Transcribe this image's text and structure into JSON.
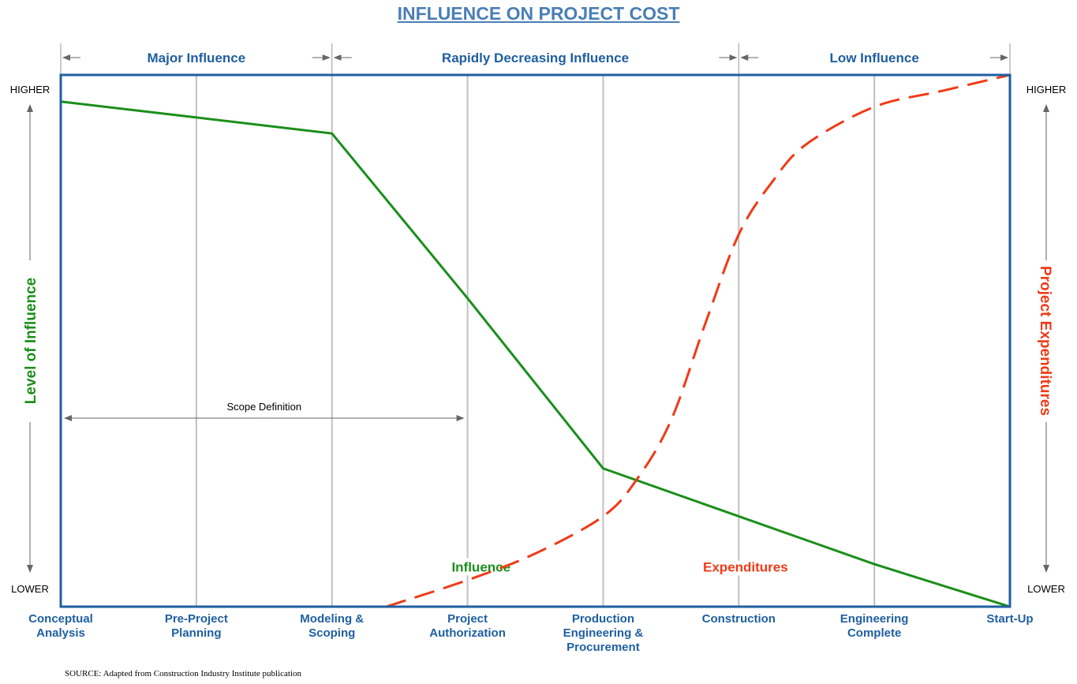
{
  "title": "INFLUENCE ON PROJECT COST",
  "source": "SOURCE: Adapted from Construction Industry Institute publication",
  "colors": {
    "blue": "#1f5fa0",
    "title_blue": "#4a7fb5",
    "green": "#1a8f1a",
    "red": "#f03a17",
    "grid": "#c0c0c0",
    "frame": "#1f5fa0"
  },
  "phases": [
    {
      "label": "Major Influence",
      "from": 0,
      "to": 2
    },
    {
      "label": "Rapidly Decreasing Influence",
      "from": 2,
      "to": 5
    },
    {
      "label": "Low Influence",
      "from": 5,
      "to": 7
    }
  ],
  "left_axis": {
    "label": "Level of Influence",
    "top": "HIGHER",
    "bottom": "LOWER"
  },
  "right_axis": {
    "label": "Project Expenditures",
    "top": "HIGHER",
    "bottom": "LOWER"
  },
  "scope": {
    "label": "Scope Definition",
    "from": 0,
    "to": 3
  },
  "chart_data": {
    "type": "line",
    "title": "INFLUENCE ON PROJECT COST",
    "categories": [
      [
        "Conceptual",
        "Analysis"
      ],
      [
        "Pre-Project",
        "Planning"
      ],
      [
        "Modeling &",
        "Scoping"
      ],
      [
        "Project",
        "Authorization"
      ],
      [
        "Production",
        "Engineering &",
        "Procurement"
      ],
      [
        "Construction"
      ],
      [
        "Engineering",
        "Complete"
      ],
      [
        "Start-Up"
      ]
    ],
    "ylim": [
      0,
      100
    ],
    "series": [
      {
        "name": "Influence",
        "style": "solid",
        "label_at": [
          6.6,
          3.1
        ],
        "points": [
          [
            0,
            95
          ],
          [
            1,
            92
          ],
          [
            2,
            89
          ],
          [
            3,
            58
          ],
          [
            4,
            26
          ],
          [
            5,
            17
          ],
          [
            6,
            8
          ],
          [
            7,
            0
          ]
        ]
      },
      {
        "name": "Expenditures",
        "style": "dashed",
        "label_at": [
          6.6,
          5.05
        ],
        "points": [
          [
            2.4,
            0
          ],
          [
            3,
            5
          ],
          [
            3.5,
            10
          ],
          [
            4,
            17
          ],
          [
            4.25,
            24
          ],
          [
            4.5,
            35
          ],
          [
            4.75,
            53
          ],
          [
            5,
            70
          ],
          [
            5.25,
            80
          ],
          [
            5.5,
            87
          ],
          [
            6,
            94
          ],
          [
            6.5,
            97
          ],
          [
            7,
            100
          ]
        ]
      }
    ]
  }
}
